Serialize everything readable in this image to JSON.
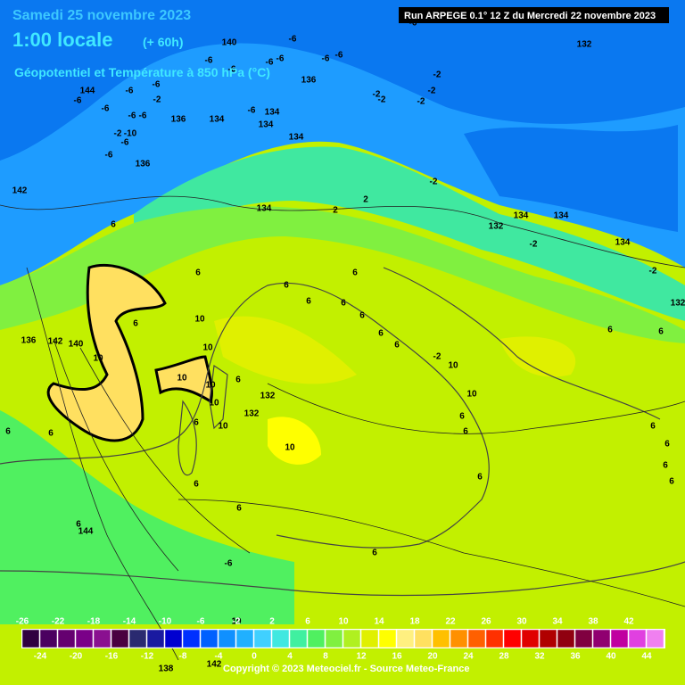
{
  "header": {
    "title": "Samedi 25 novembre 2023",
    "time": "1:00 locale",
    "lead": "(+ 60h)",
    "subtitle": "Géopotentiel et Température à 850 hPa (°C)",
    "run": "Run ARPEGE 0.1° 12 Z du Mercredi 22 novembre 2023"
  },
  "map_labels": [
    "140",
    "-6",
    "-6",
    "-6",
    "-6",
    "-6",
    "-6",
    "-6",
    "136",
    "144",
    "-6",
    "-6",
    "-6",
    "-6",
    "-6",
    "-6",
    "-2",
    "136",
    "134",
    "134",
    "134",
    "-6",
    "-2",
    "-10",
    "-6",
    "136",
    "-6",
    "142",
    "132",
    "-6",
    "-2",
    "-2",
    "-2",
    "-2",
    "-2",
    "134",
    "2",
    "2",
    "-2",
    "134",
    "6",
    "132",
    "134",
    "134",
    "-2",
    "134",
    "-2",
    "132",
    "6",
    "6",
    "6",
    "6",
    "6",
    "6",
    "6",
    "6",
    "6",
    "6",
    "6",
    "10",
    "10",
    "10",
    "10",
    "10",
    "10",
    "6",
    "132",
    "132",
    "10",
    "6",
    "6",
    "6",
    "10",
    "10",
    "10",
    "6",
    "6",
    "6",
    "6",
    "6",
    "6",
    "6",
    "6",
    "6",
    "6",
    "144",
    "-6",
    "6",
    "136",
    "142",
    "140",
    "138",
    "142",
    "10",
    "-2"
  ],
  "legend": {
    "ticks_top": [
      -26,
      -22,
      -18,
      -14,
      -10,
      -6,
      -2,
      2,
      6,
      10,
      14,
      18,
      22,
      26,
      30,
      34,
      38,
      42
    ],
    "ticks_bottom": [
      -24,
      -20,
      -16,
      -12,
      -8,
      -4,
      0,
      4,
      8,
      12,
      16,
      20,
      24,
      28,
      32,
      36,
      40,
      44
    ],
    "colors": [
      "#300040",
      "#4b0060",
      "#650070",
      "#7a0088",
      "#8a1090",
      "#4a0040",
      "#2a2a70",
      "#1a1aa0",
      "#0000d0",
      "#0030ff",
      "#0060ff",
      "#1090ff",
      "#20b0ff",
      "#40d0ff",
      "#40e8e0",
      "#40f0a0",
      "#50f060",
      "#80f040",
      "#b0f020",
      "#e0f000",
      "#ffff00",
      "#fff080",
      "#ffe060",
      "#ffc000",
      "#ff9000",
      "#ff6000",
      "#ff3000",
      "#ff0000",
      "#e00000",
      "#b00000",
      "#900010",
      "#800040",
      "#900070",
      "#c000a0",
      "#e040e0",
      "#f080f0"
    ]
  },
  "footer": {
    "copyright": "Copyright © 2023 Meteociel.fr - Source Meteo-France"
  }
}
